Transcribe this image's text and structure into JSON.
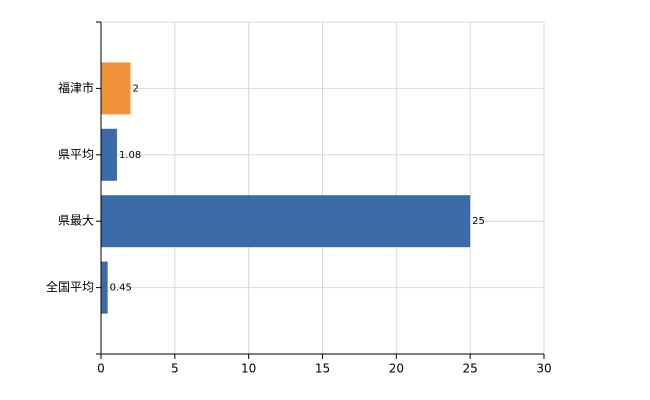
{
  "chart_data": {
    "type": "bar",
    "orientation": "horizontal",
    "categories": [
      "福津市",
      "県平均",
      "県最大",
      "全国平均"
    ],
    "values": [
      2,
      1.08,
      25,
      0.45
    ],
    "colors": [
      "#f0923a",
      "#3b6aa8",
      "#3b6aa8",
      "#3b6aa8"
    ],
    "xlim": [
      0,
      30
    ],
    "xticks": [
      0,
      5,
      10,
      15,
      20,
      25,
      30
    ],
    "grid": true
  }
}
